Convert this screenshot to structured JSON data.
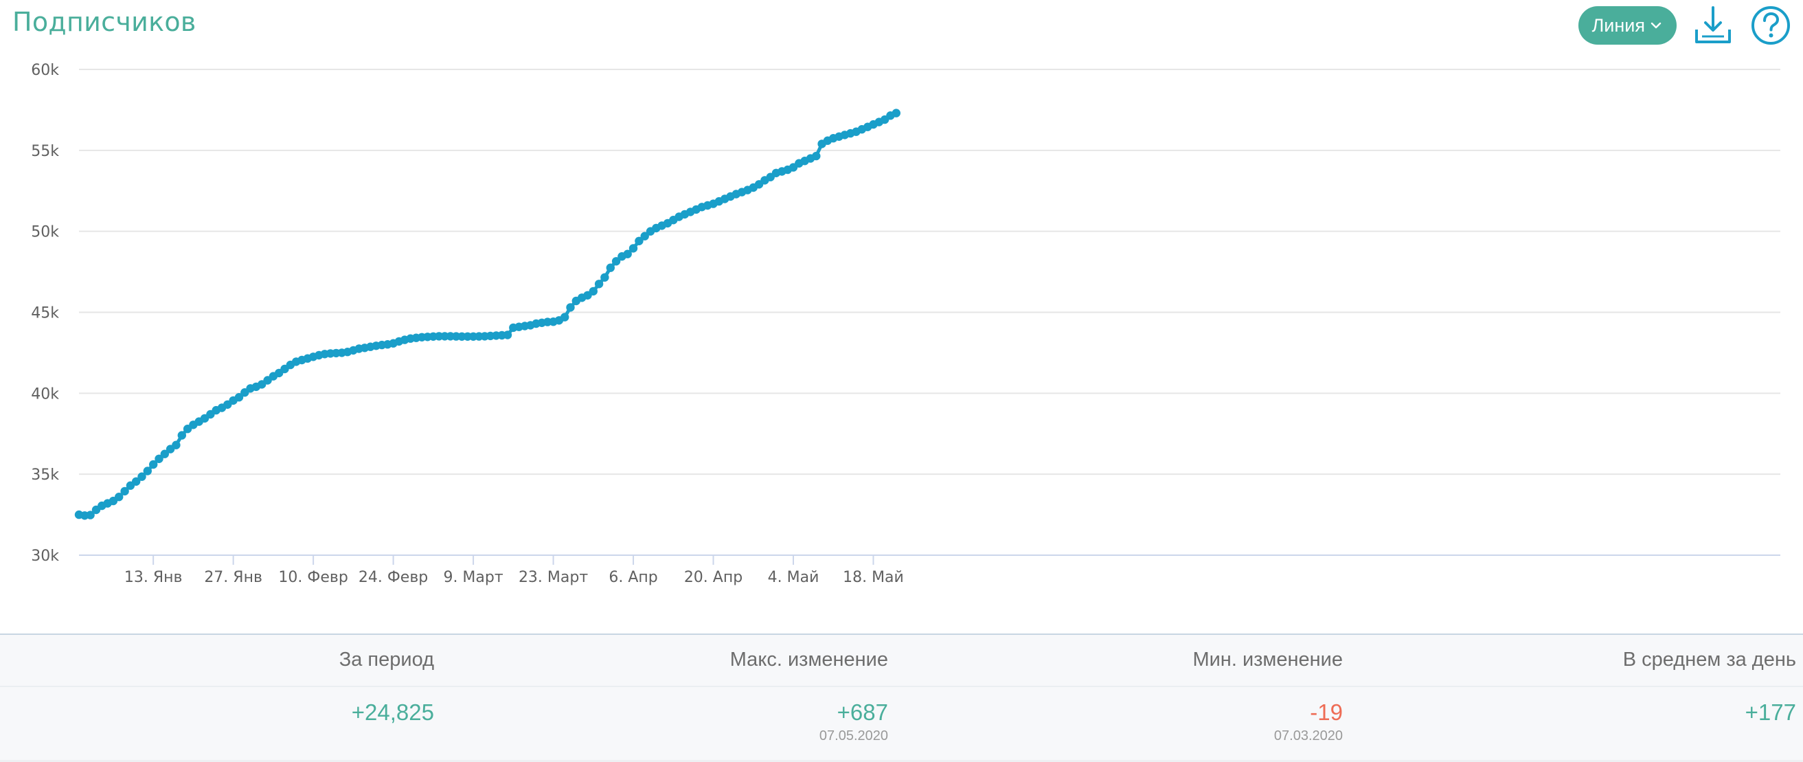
{
  "header": {
    "title": "Подписчиков",
    "chart_type_label": "Линия",
    "download_icon": "download-icon",
    "help_icon": "help-icon"
  },
  "colors": {
    "accent": "#4aae9b",
    "line": "#1a9ec9",
    "negative": "#ee6c55"
  },
  "chart_data": {
    "type": "line",
    "title": "",
    "xlabel": "",
    "ylabel": "",
    "ylim": [
      30000,
      60000
    ],
    "y_ticks": [
      {
        "value": 60000,
        "label": "60k"
      },
      {
        "value": 55000,
        "label": "55k"
      },
      {
        "value": 50000,
        "label": "50k"
      },
      {
        "value": 45000,
        "label": "45k"
      },
      {
        "value": 40000,
        "label": "40k"
      },
      {
        "value": 35000,
        "label": "35k"
      },
      {
        "value": 30000,
        "label": "30k"
      }
    ],
    "x_start_date": "2019-12-31",
    "x_ticks": [
      {
        "date": "2020-01-13",
        "label": "13. Янв"
      },
      {
        "date": "2020-01-27",
        "label": "27. Янв"
      },
      {
        "date": "2020-02-10",
        "label": "10. Февр"
      },
      {
        "date": "2020-02-24",
        "label": "24. Февр"
      },
      {
        "date": "2020-03-09",
        "label": "9. Март"
      },
      {
        "date": "2020-03-23",
        "label": "23. Март"
      },
      {
        "date": "2020-04-06",
        "label": "6. Апр"
      },
      {
        "date": "2020-04-20",
        "label": "20. Апр"
      },
      {
        "date": "2020-05-04",
        "label": "4. Май"
      },
      {
        "date": "2020-05-18",
        "label": "18. Май"
      }
    ],
    "grid": true,
    "legend": "none",
    "series": [
      {
        "values": [
          32500,
          32450,
          32480,
          32800,
          33050,
          33200,
          33350,
          33600,
          33950,
          34300,
          34550,
          34850,
          35200,
          35600,
          35950,
          36250,
          36550,
          36800,
          37400,
          37800,
          38050,
          38250,
          38450,
          38700,
          38950,
          39100,
          39300,
          39550,
          39750,
          40050,
          40300,
          40400,
          40550,
          40800,
          41050,
          41250,
          41500,
          41750,
          41950,
          42050,
          42150,
          42250,
          42350,
          42420,
          42460,
          42480,
          42500,
          42550,
          42650,
          42750,
          42800,
          42870,
          42930,
          42980,
          43020,
          43080,
          43200,
          43300,
          43380,
          43420,
          43460,
          43480,
          43500,
          43520,
          43520,
          43520,
          43510,
          43500,
          43500,
          43500,
          43510,
          43520,
          43540,
          43560,
          43580,
          43600,
          44050,
          44100,
          44150,
          44200,
          44300,
          44350,
          44400,
          44420,
          44500,
          44700,
          45300,
          45700,
          45900,
          46050,
          46300,
          46750,
          47150,
          47750,
          48150,
          48450,
          48600,
          48950,
          49400,
          49700,
          50000,
          50200,
          50350,
          50500,
          50700,
          50900,
          51050,
          51200,
          51350,
          51500,
          51600,
          51700,
          51850,
          52000,
          52150,
          52300,
          52420,
          52550,
          52700,
          52900,
          53150,
          53350,
          53600,
          53700,
          53800,
          53950,
          54200,
          54350,
          54500,
          54650,
          55400,
          55600,
          55750,
          55850,
          55950,
          56050,
          56150,
          56300,
          56450,
          56600,
          56750,
          56900,
          57150,
          57300
        ]
      }
    ]
  },
  "summary": {
    "columns": [
      {
        "label": "За период",
        "value": "+24,825",
        "sign": "pos",
        "date": ""
      },
      {
        "label": "Макс. изменение",
        "value": "+687",
        "sign": "pos",
        "date": "07.05.2020"
      },
      {
        "label": "Мин. изменение",
        "value": "-19",
        "sign": "neg",
        "date": "07.03.2020"
      },
      {
        "label": "В среднем за день",
        "value": "+177",
        "sign": "pos",
        "date": ""
      }
    ]
  }
}
